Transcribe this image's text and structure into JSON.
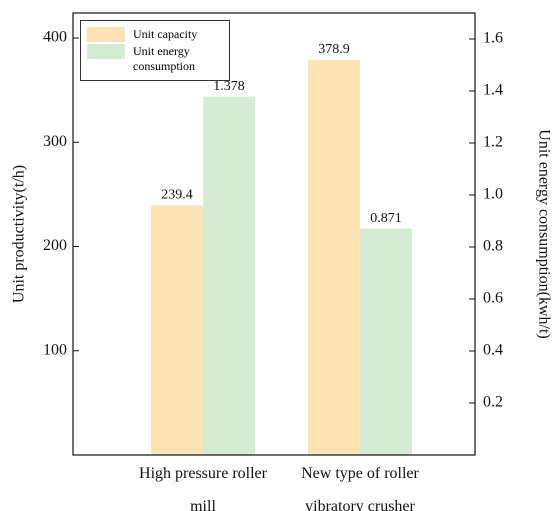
{
  "chart_data": {
    "type": "bar",
    "categories": [
      "High pressure roller mill",
      "New type of roller vibratory crusher"
    ],
    "series": [
      {
        "name": "Unit capacity",
        "color": "#fde3b4",
        "values": [
          239.4,
          378.9
        ]
      },
      {
        "name": "Unit energy consumption",
        "color": "#d4ecd4",
        "values": [
          1.378,
          0.871
        ],
        "axis": "y2"
      }
    ],
    "ylabel": "Unit productivity(t/h)",
    "y2label": "Unit energy consumption(kwh/t)",
    "ylim": [
      0,
      424
    ],
    "yticks": [
      100,
      200,
      300,
      400
    ],
    "y2lim": [
      0,
      1.7
    ],
    "y2ticks": [
      0.2,
      0.4,
      0.6,
      0.8,
      {
        "value": 1,
        "label": "1.0"
      },
      1.2,
      1.4,
      1.6
    ],
    "legend": "upper-left"
  }
}
